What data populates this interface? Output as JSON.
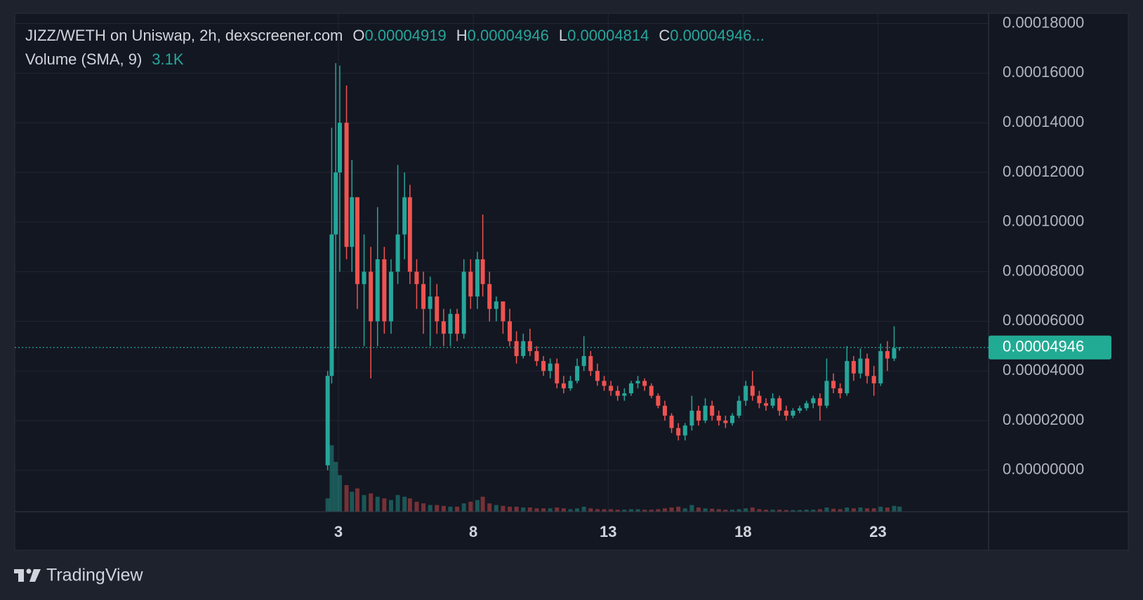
{
  "chart_data": {
    "type": "candlestick",
    "title": "JIZZ/WETH on Uniswap, 2h, dexscreener.com",
    "ohlc_legend": [
      {
        "label": "O",
        "value": "0.00004919"
      },
      {
        "label": "H",
        "value": "0.00004946"
      },
      {
        "label": "L",
        "value": "0.00004814"
      },
      {
        "label": "C",
        "value": "0.00004946..."
      }
    ],
    "volume_legend": {
      "label": "Volume (SMA, 9)",
      "value": "3.1K"
    },
    "x": [
      2.6,
      2.75,
      2.9,
      3.05,
      3.3,
      3.5,
      3.7,
      3.95,
      4.2,
      4.45,
      4.7,
      4.95,
      5.2,
      5.45,
      5.65,
      5.9,
      6.15,
      6.4,
      6.65,
      6.9,
      7.15,
      7.4,
      7.65,
      7.9,
      8.15,
      8.35,
      8.6,
      8.85,
      9.1,
      9.35,
      9.6,
      9.85,
      10.1,
      10.35,
      10.6,
      10.85,
      11.1,
      11.35,
      11.6,
      11.85,
      12.1,
      12.35,
      12.6,
      12.85,
      13.1,
      13.35,
      13.6,
      13.85,
      14.1,
      14.35,
      14.6,
      14.85,
      15.1,
      15.35,
      15.6,
      15.85,
      16.1,
      16.35,
      16.6,
      16.85,
      17.1,
      17.35,
      17.6,
      17.85,
      18.1,
      18.35,
      18.6,
      18.85,
      19.1,
      19.35,
      19.6,
      19.85,
      20.1,
      20.35,
      20.6,
      20.85,
      21.1,
      21.35,
      21.6,
      21.85,
      22.1,
      22.35,
      22.6,
      22.85,
      23.1,
      23.35,
      23.6,
      23.8
    ],
    "open": [
      2e-06,
      3.8e-05,
      9.5e-05,
      0.00012,
      0.00014,
      9e-05,
      0.00011,
      7.5e-05,
      8e-05,
      6e-05,
      8.5e-05,
      6e-05,
      8e-05,
      9.5e-05,
      0.00011,
      8e-05,
      7.5e-05,
      6.5e-05,
      7e-05,
      6e-05,
      5.5e-05,
      6.3e-05,
      5.5e-05,
      8e-05,
      7e-05,
      8.5e-05,
      7.5e-05,
      6.5e-05,
      6.8e-05,
      6e-05,
      5.2e-05,
      4.6e-05,
      5.2e-05,
      4.8e-05,
      4.4e-05,
      4e-05,
      4.3e-05,
      3.5e-05,
      3.3e-05,
      3.6e-05,
      4.2e-05,
      4.6e-05,
      4e-05,
      3.6e-05,
      3.4e-05,
      3.2e-05,
      3e-05,
      3.1e-05,
      3.5e-05,
      3.6e-05,
      3.4e-05,
      3e-05,
      2.6e-05,
      2.2e-05,
      1.7e-05,
      1.4e-05,
      1.8e-05,
      2.4e-05,
      2e-05,
      2.6e-05,
      2.2e-05,
      2e-05,
      1.9e-05,
      2.2e-05,
      2.8e-05,
      3.4e-05,
      3e-05,
      2.7e-05,
      2.6e-05,
      2.9e-05,
      2.4e-05,
      2.2e-05,
      2.4e-05,
      2.5e-05,
      2.7e-05,
      2.9e-05,
      2.6e-05,
      3.6e-05,
      3.3e-05,
      3.1e-05,
      4.4e-05,
      3.9e-05,
      4.5e-05,
      3.8e-05,
      3.5e-05,
      4.8e-05,
      4.5e-05,
      4.919e-05
    ],
    "high": [
      4e-05,
      0.000138,
      0.000164,
      0.000163,
      0.000155,
      0.000125,
      0.00011,
      9.5e-05,
      9e-05,
      0.000106,
      9e-05,
      8.5e-05,
      0.000123,
      0.00012,
      0.000115,
      8.5e-05,
      8e-05,
      7.8e-05,
      7.5e-05,
      6.5e-05,
      6.5e-05,
      6.5e-05,
      8.5e-05,
      8.5e-05,
      8.8e-05,
      0.000103,
      8e-05,
      7e-05,
      6.8e-05,
      6.5e-05,
      5.6e-05,
      5.5e-05,
      5.7e-05,
      5e-05,
      4.6e-05,
      4.5e-05,
      4.5e-05,
      3.8e-05,
      3.8e-05,
      4.5e-05,
      5.4e-05,
      4.8e-05,
      4.3e-05,
      3.8e-05,
      3.6e-05,
      3.4e-05,
      3.3e-05,
      3.6e-05,
      3.8e-05,
      3.7e-05,
      3.5e-05,
      3.1e-05,
      2.8e-05,
      2.3e-05,
      1.9e-05,
      1.9e-05,
      3e-05,
      2.6e-05,
      2.9e-05,
      2.8e-05,
      2.4e-05,
      2.2e-05,
      2.3e-05,
      3e-05,
      3.6e-05,
      4e-05,
      3.2e-05,
      2.9e-05,
      3.1e-05,
      3e-05,
      2.6e-05,
      2.5e-05,
      2.6e-05,
      2.8e-05,
      3e-05,
      3.1e-05,
      4.5e-05,
      3.9e-05,
      3.5e-05,
      5e-05,
      4.6e-05,
      4.9e-05,
      4.7e-05,
      4.2e-05,
      5.1e-05,
      5.2e-05,
      5.8e-05,
      4.946e-05
    ],
    "low": [
      0,
      3.5e-05,
      4.9e-05,
      8e-05,
      8.5e-05,
      8e-05,
      6.5e-05,
      5e-05,
      3.7e-05,
      5e-05,
      5.5e-05,
      5.5e-05,
      7.5e-05,
      8.5e-05,
      7.5e-05,
      6.5e-05,
      5.5e-05,
      5e-05,
      5.5e-05,
      5e-05,
      5e-05,
      5.2e-05,
      5.3e-05,
      6.5e-05,
      6.5e-05,
      7e-05,
      6e-05,
      6e-05,
      5.5e-05,
      5e-05,
      4.3e-05,
      4.5e-05,
      4.6e-05,
      4.2e-05,
      3.8e-05,
      3.7e-05,
      3.3e-05,
      3.1e-05,
      3.2e-05,
      3.5e-05,
      4e-05,
      3.8e-05,
      3.4e-05,
      3.2e-05,
      3e-05,
      2.8e-05,
      2.8e-05,
      3e-05,
      3.3e-05,
      3.2e-05,
      2.9e-05,
      2.5e-05,
      2e-05,
      1.5e-05,
      1.2e-05,
      1.2e-05,
      1.6e-05,
      1.8e-05,
      1.9e-05,
      2e-05,
      1.8e-05,
      1.7e-05,
      1.8e-05,
      2.1e-05,
      2.6e-05,
      2.8e-05,
      2.5e-05,
      2.4e-05,
      2.5e-05,
      2.2e-05,
      2e-05,
      2.1e-05,
      2.3e-05,
      2.4e-05,
      2.5e-05,
      2e-05,
      2.5e-05,
      3.1e-05,
      2.9e-05,
      3e-05,
      3.6e-05,
      3.7e-05,
      3.5e-05,
      3e-05,
      3.4e-05,
      4e-05,
      4.4e-05,
      4.814e-05
    ],
    "close": [
      3.8e-05,
      9.5e-05,
      0.00012,
      0.00014,
      9e-05,
      0.00011,
      7.5e-05,
      8e-05,
      6e-05,
      8.5e-05,
      6e-05,
      8e-05,
      9.5e-05,
      0.00011,
      8e-05,
      7.5e-05,
      6.5e-05,
      7e-05,
      6e-05,
      5.5e-05,
      6.3e-05,
      5.5e-05,
      8e-05,
      7e-05,
      8.5e-05,
      7.5e-05,
      6.5e-05,
      6.8e-05,
      6e-05,
      5.2e-05,
      4.6e-05,
      5.2e-05,
      4.8e-05,
      4.4e-05,
      4e-05,
      4.3e-05,
      3.5e-05,
      3.3e-05,
      3.6e-05,
      4.2e-05,
      4.6e-05,
      4e-05,
      3.6e-05,
      3.4e-05,
      3.2e-05,
      3e-05,
      3.1e-05,
      3.5e-05,
      3.6e-05,
      3.4e-05,
      3e-05,
      2.6e-05,
      2.2e-05,
      1.7e-05,
      1.4e-05,
      1.8e-05,
      2.4e-05,
      2e-05,
      2.6e-05,
      2.2e-05,
      2e-05,
      1.9e-05,
      2.2e-05,
      2.8e-05,
      3.4e-05,
      3e-05,
      2.7e-05,
      2.6e-05,
      2.9e-05,
      2.4e-05,
      2.2e-05,
      2.4e-05,
      2.5e-05,
      2.7e-05,
      2.9e-05,
      2.6e-05,
      3.6e-05,
      3.3e-05,
      3.1e-05,
      4.4e-05,
      3.9e-05,
      4.5e-05,
      3.8e-05,
      3.5e-05,
      4.8e-05,
      4.5e-05,
      4.919e-05,
      4.946e-05
    ],
    "volume": [
      8000,
      40000,
      30000,
      22000,
      16000,
      12000,
      14000,
      10000,
      11000,
      9000,
      8000,
      7000,
      10000,
      9000,
      8000,
      6000,
      5000,
      4000,
      4000,
      3500,
      3000,
      3000,
      5000,
      6000,
      7000,
      9000,
      5000,
      4000,
      3500,
      3000,
      3000,
      2500,
      2500,
      2000,
      2000,
      2000,
      2500,
      2000,
      1500,
      2000,
      3000,
      2000,
      1500,
      1500,
      1500,
      1200,
      1200,
      1500,
      1500,
      1200,
      1200,
      1500,
      2000,
      2500,
      3000,
      2000,
      4000,
      2500,
      2000,
      1800,
      1500,
      1200,
      1200,
      1500,
      2000,
      2500,
      1500,
      1200,
      1200,
      1200,
      1000,
      1000,
      1000,
      1200,
      1200,
      1500,
      2500,
      1800,
      1500,
      2500,
      2000,
      2500,
      2000,
      2000,
      3000,
      2500,
      3500,
      3100
    ],
    "up_color": "#26a69a",
    "down_color": "#ef5350",
    "xlim": [
      -9,
      27.1
    ],
    "xticks": [
      3,
      8,
      13,
      18,
      23
    ],
    "ylim": [
      -1.67e-05,
      0.0001841
    ],
    "yticks": [
      {
        "value": 0,
        "label": "0.00000000"
      },
      {
        "value": 2e-05,
        "label": "0.00002000"
      },
      {
        "value": 4e-05,
        "label": "0.00004000"
      },
      {
        "value": 6e-05,
        "label": "0.00006000"
      },
      {
        "value": 8e-05,
        "label": "0.00008000"
      },
      {
        "value": 0.0001,
        "label": "0.00010000"
      },
      {
        "value": 0.00012,
        "label": "0.00012000"
      },
      {
        "value": 0.00014,
        "label": "0.00014000"
      },
      {
        "value": 0.00016,
        "label": "0.00016000"
      },
      {
        "value": 0.00018,
        "label": "0.00018000"
      }
    ],
    "volume_lim": [
      0,
      300000
    ],
    "last_price": {
      "value": 4.946e-05,
      "label": "0.00004946"
    },
    "grid": true
  },
  "branding": "TradingView"
}
